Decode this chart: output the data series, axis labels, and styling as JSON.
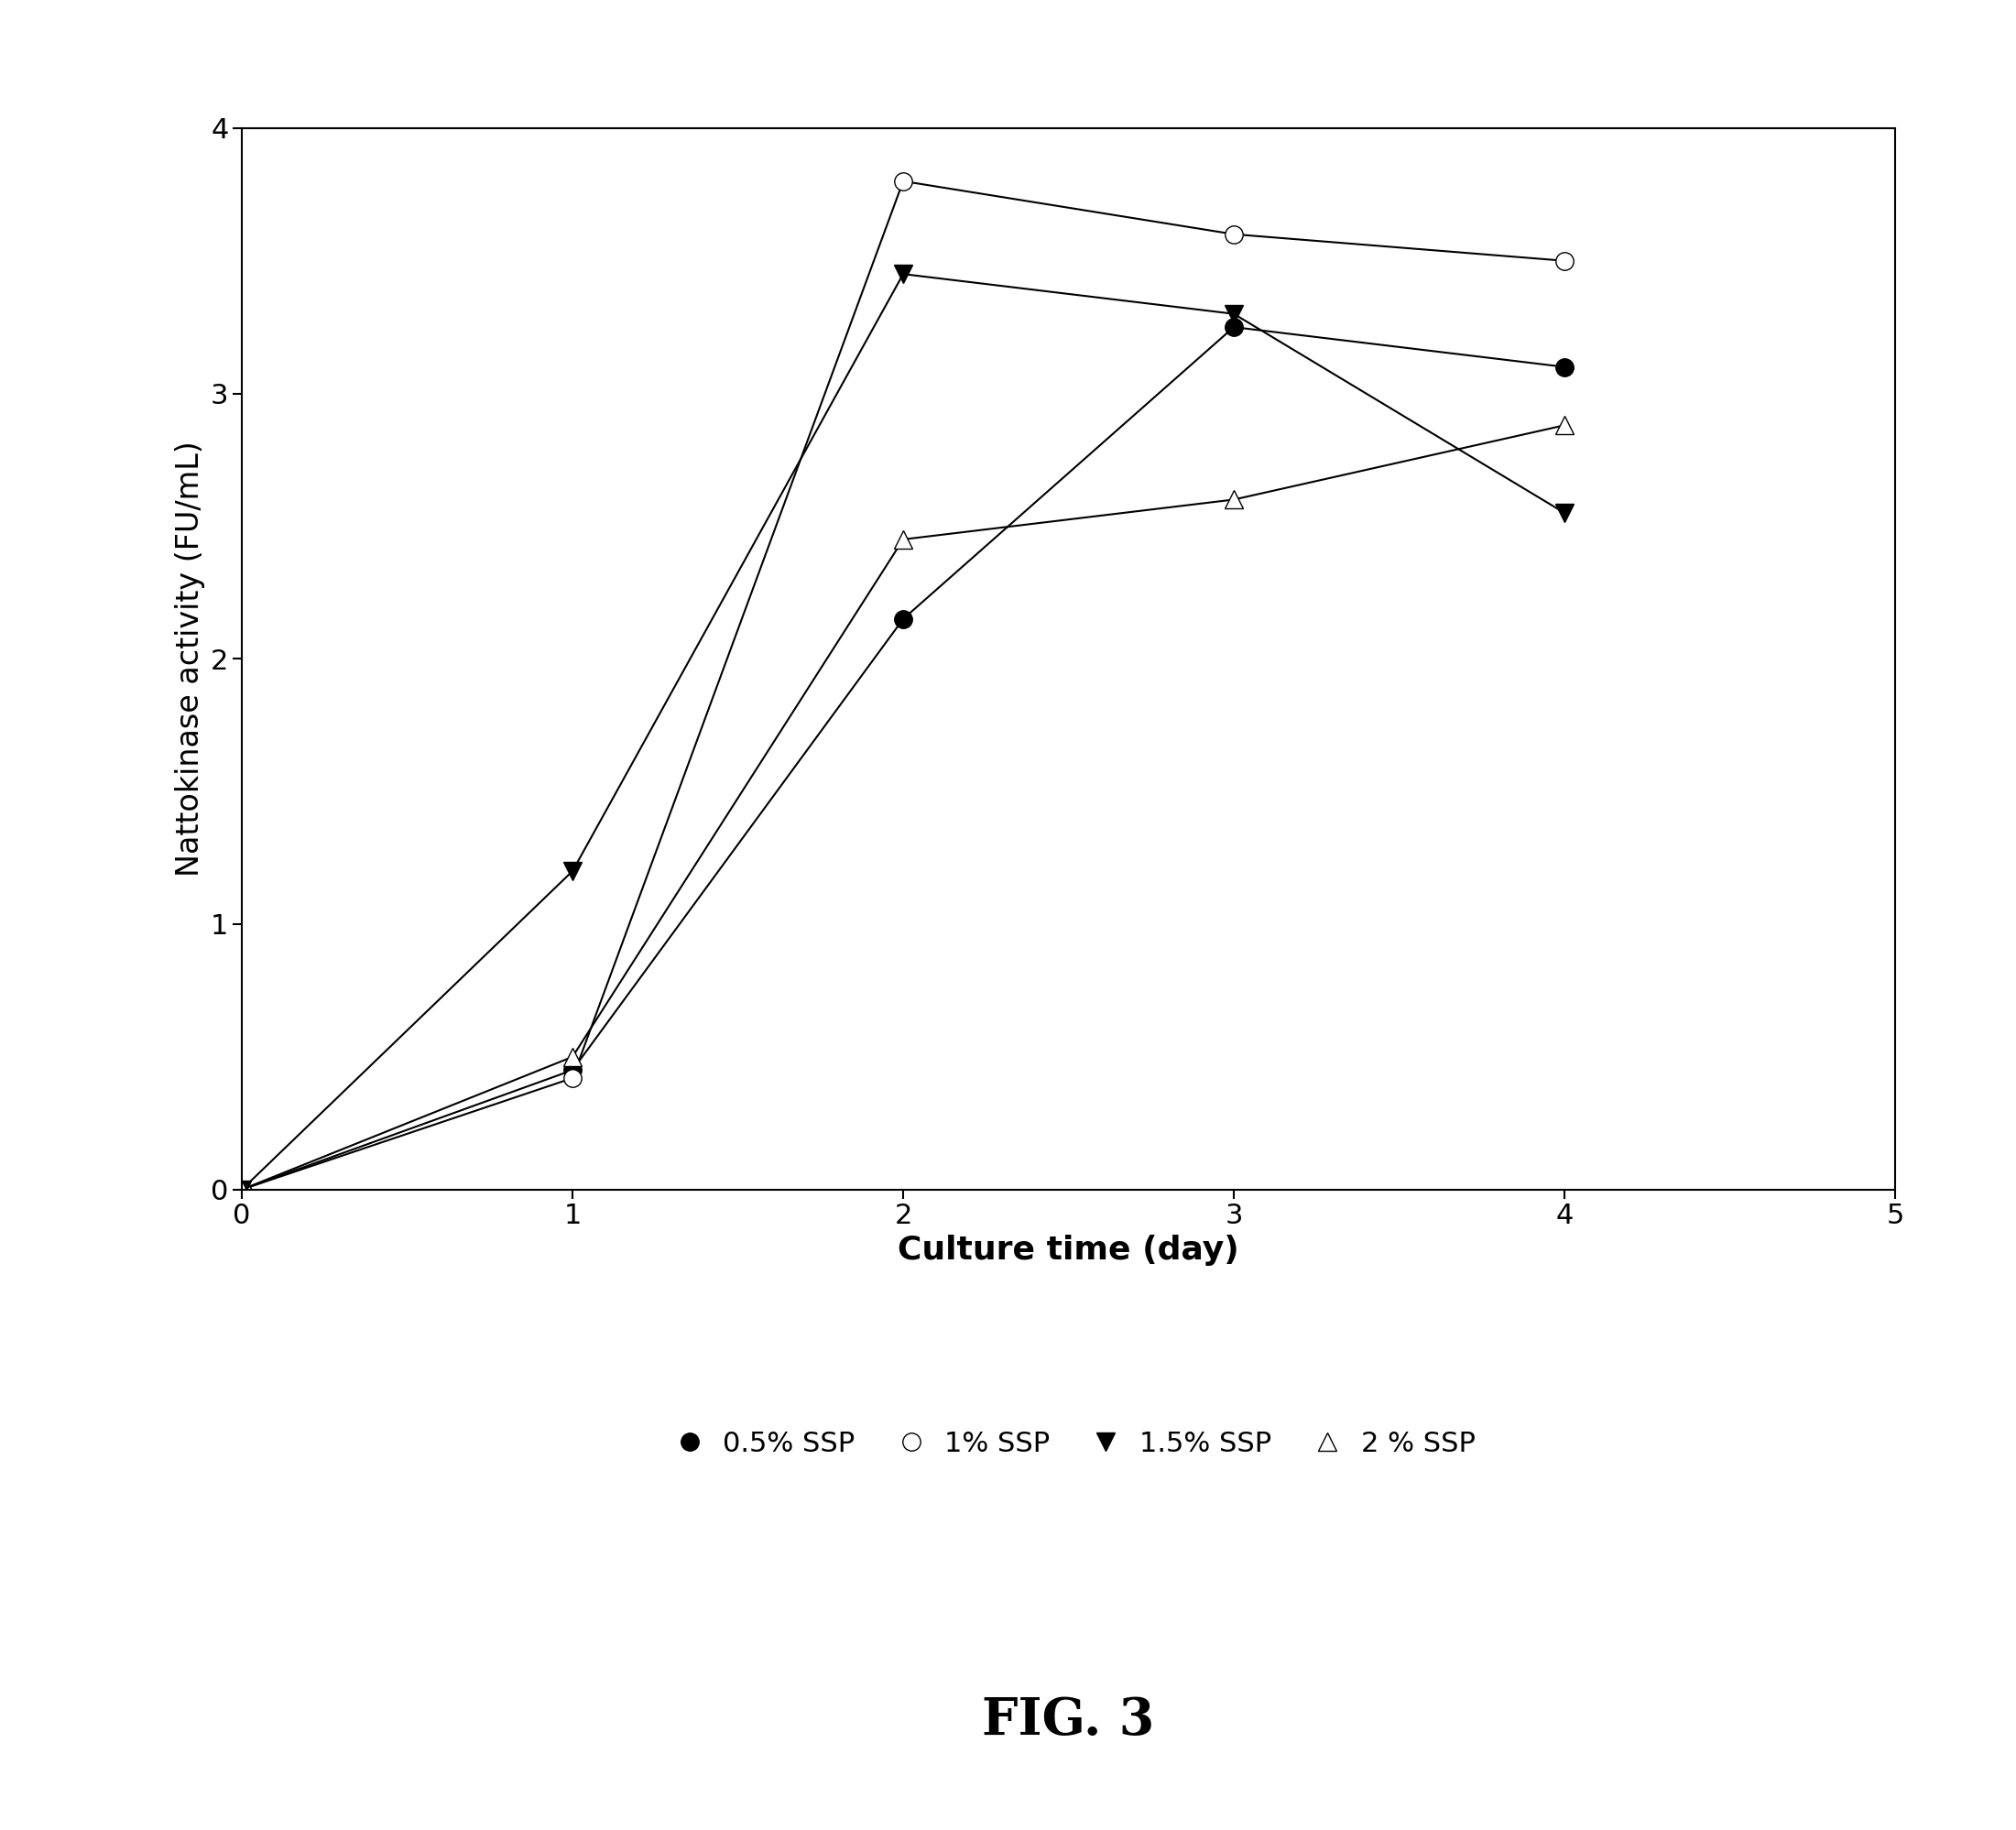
{
  "series": [
    {
      "label": "0.5% SSP",
      "x": [
        0,
        1,
        2,
        3,
        4
      ],
      "y": [
        0,
        0.45,
        2.15,
        3.25,
        3.1
      ],
      "marker": "o",
      "fillstyle": "full",
      "color": "black"
    },
    {
      "label": "1% SSP",
      "x": [
        0,
        1,
        2,
        3,
        4
      ],
      "y": [
        0,
        0.42,
        3.8,
        3.6,
        3.5
      ],
      "marker": "o",
      "fillstyle": "none",
      "color": "black"
    },
    {
      "label": "1.5% SSP",
      "x": [
        0,
        1,
        2,
        3,
        4
      ],
      "y": [
        0,
        1.2,
        3.45,
        3.3,
        2.55
      ],
      "marker": "v",
      "fillstyle": "full",
      "color": "black"
    },
    {
      "label": "2 % SSP",
      "x": [
        0,
        1,
        2,
        3,
        4
      ],
      "y": [
        0,
        0.5,
        2.45,
        2.6,
        2.88
      ],
      "marker": "^",
      "fillstyle": "none",
      "color": "black"
    }
  ],
  "xlabel": "Culture time (day)",
  "ylabel": "Nattokinase activity (FU/mL)",
  "xlim": [
    0,
    5
  ],
  "ylim": [
    0,
    4
  ],
  "xticks": [
    0,
    1,
    2,
    3,
    4,
    5
  ],
  "yticks": [
    0,
    1,
    2,
    3,
    4
  ],
  "fig_caption": "FIG. 3",
  "marker_size": 14,
  "linewidth": 1.5,
  "xlabel_fontsize": 26,
  "ylabel_fontsize": 24,
  "tick_fontsize": 22,
  "legend_fontsize": 22,
  "caption_fontsize": 40
}
